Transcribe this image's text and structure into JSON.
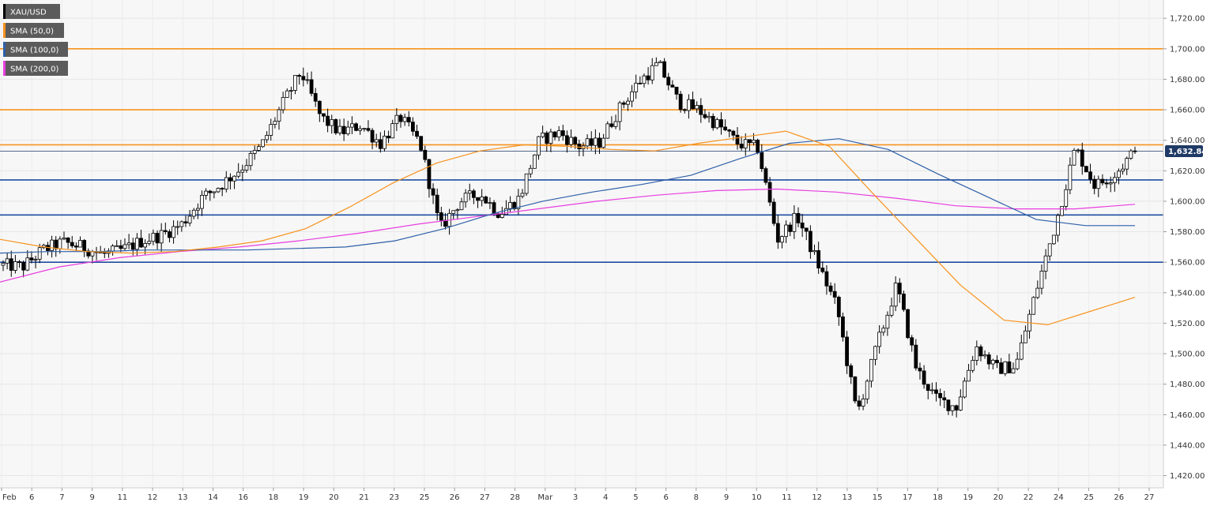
{
  "chart_data": {
    "type": "candlestick",
    "symbol": "XAU/USD",
    "last_price_label": "1,632.84",
    "last_price": 1632.84,
    "ylim": [
      1412,
      1732
    ],
    "y_ticks": [
      {
        "value": 1420,
        "label": "1,420.00"
      },
      {
        "value": 1440,
        "label": "1,440.00"
      },
      {
        "value": 1460,
        "label": "1,460.00"
      },
      {
        "value": 1480,
        "label": "1,480.00"
      },
      {
        "value": 1500,
        "label": "1,500.00"
      },
      {
        "value": 1520,
        "label": "1,520.00"
      },
      {
        "value": 1540,
        "label": "1,540.00"
      },
      {
        "value": 1560,
        "label": "1,560.00"
      },
      {
        "value": 1580,
        "label": "1,580.00"
      },
      {
        "value": 1600,
        "label": "1,600.00"
      },
      {
        "value": 1620,
        "label": "1,620.00"
      },
      {
        "value": 1640,
        "label": "1,640.00"
      },
      {
        "value": 1660,
        "label": "1,660.00"
      },
      {
        "value": 1680,
        "label": "1,680.00"
      },
      {
        "value": 1700,
        "label": "1,700.00"
      },
      {
        "value": 1720,
        "label": "1,720.00"
      }
    ],
    "x_ticks": [
      "Feb",
      "6",
      "7",
      "9",
      "11",
      "12",
      "13",
      "14",
      "16",
      "18",
      "19",
      "20",
      "21",
      "23",
      "25",
      "26",
      "27",
      "28",
      "Mar",
      "3",
      "4",
      "5",
      "6",
      "8",
      "9",
      "10",
      "11",
      "12",
      "13",
      "15",
      "17",
      "18",
      "19",
      "20",
      "22",
      "24",
      "25",
      "26",
      "27"
    ],
    "grid": true,
    "legend_position": "top-left",
    "legend": [
      {
        "label": "XAU/USD",
        "color": "#000000"
      },
      {
        "label": "SMA (50,0)",
        "color": "#f7931e"
      },
      {
        "label": "SMA (100,0)",
        "color": "#2e5fa8"
      },
      {
        "label": "SMA (200,0)",
        "color": "#e83ee0"
      }
    ],
    "resistance_lines": [
      1700,
      1660,
      1637
    ],
    "support_lines": [
      1614,
      1591,
      1560
    ],
    "level_colors": {
      "resistance": "#f7931e",
      "support": "#1f4ea1",
      "last": "#1f3a66"
    },
    "series_colors": {
      "sma50": "#f7931e",
      "sma100": "#2e5fa8",
      "sma200": "#e83ee0"
    },
    "close_path": [
      1558,
      1557,
      1568,
      1573,
      1570,
      1565,
      1568,
      1574,
      1578,
      1585,
      1602,
      1611,
      1622,
      1636,
      1662,
      1685,
      1655,
      1645,
      1650,
      1638,
      1655,
      1638,
      1582,
      1600,
      1605,
      1592,
      1602,
      1640,
      1645,
      1636,
      1638,
      1660,
      1678,
      1690,
      1665,
      1660,
      1650,
      1638,
      1635,
      1575,
      1590,
      1560,
      1530,
      1460,
      1505,
      1545,
      1490,
      1470,
      1465,
      1505,
      1490,
      1492,
      1540,
      1585,
      1635,
      1610,
      1618,
      1632.84
    ],
    "candle_count": 280,
    "sma50": [
      1575,
      1570,
      1567,
      1566,
      1567,
      1570,
      1574,
      1582,
      1596,
      1612,
      1625,
      1633,
      1637,
      1636,
      1634,
      1633,
      1638,
      1642,
      1646,
      1636,
      1605,
      1575,
      1545,
      1522,
      1519,
      1528,
      1537
    ],
    "sma100": [
      1566,
      1567,
      1567,
      1568,
      1568,
      1568,
      1569,
      1570,
      1574,
      1582,
      1592,
      1600,
      1606,
      1611,
      1617,
      1628,
      1638,
      1641,
      1634,
      1618,
      1603,
      1588,
      1584,
      1584
    ],
    "sma200": [
      1547,
      1557,
      1563,
      1567,
      1570,
      1574,
      1579,
      1585,
      1590,
      1595,
      1600,
      1604,
      1607,
      1608,
      1606,
      1602,
      1597,
      1595,
      1595,
      1598
    ]
  }
}
